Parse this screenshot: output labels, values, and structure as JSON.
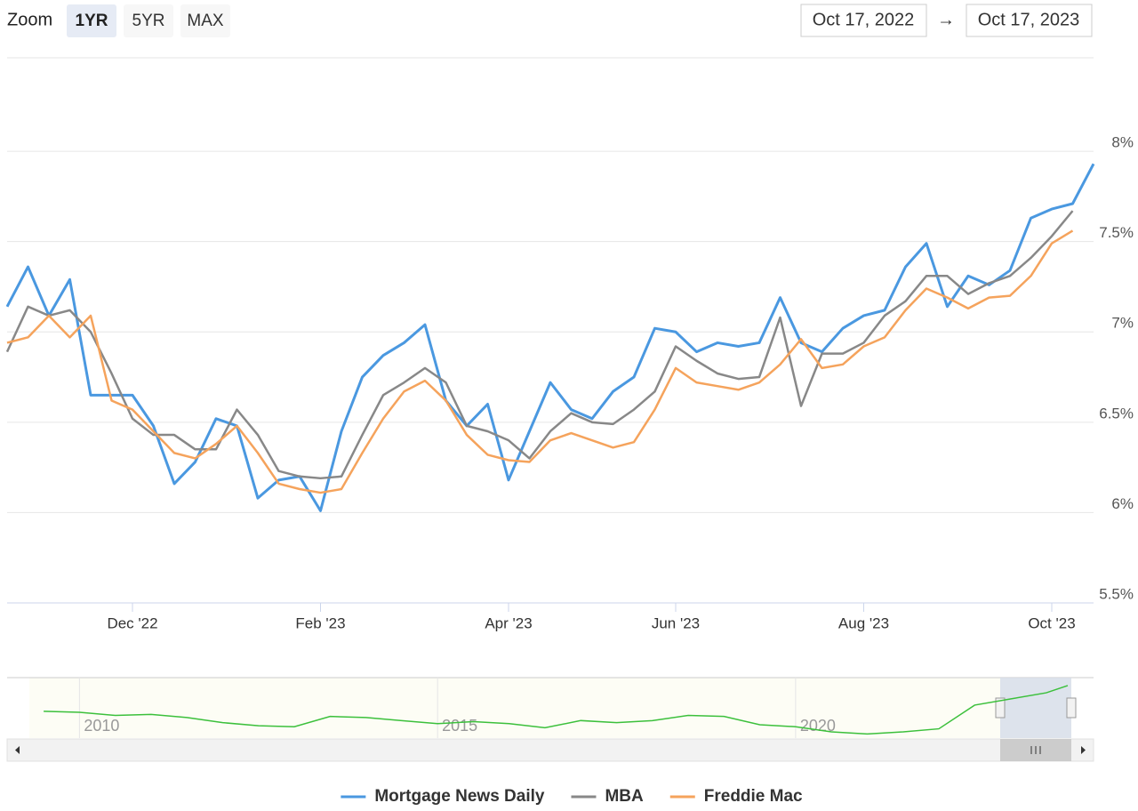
{
  "range_selector": {
    "label": "Zoom",
    "buttons": [
      "1YR",
      "5YR",
      "MAX"
    ],
    "from": "Oct 17, 2022",
    "arrow": "→",
    "to": "Oct 17, 2023"
  },
  "chart_data": [
    {
      "type": "line",
      "categories": [
        null,
        null,
        null,
        null,
        null,
        null,
        "Dec '22",
        null,
        null,
        null,
        null,
        null,
        null,
        null,
        null,
        "Feb '23",
        null,
        null,
        null,
        null,
        null,
        null,
        null,
        null,
        "Apr '23",
        null,
        null,
        null,
        null,
        null,
        null,
        null,
        "Jun '23",
        null,
        null,
        null,
        null,
        null,
        null,
        null,
        null,
        "Aug '23",
        null,
        null,
        null,
        null,
        null,
        null,
        null,
        null,
        "Oct '23",
        null,
        null
      ],
      "ylim": [
        5.5,
        8.5
      ],
      "yticks": [
        {
          "value": 5.5,
          "label": "5.5%"
        },
        {
          "value": 6,
          "label": "6%"
        },
        {
          "value": 6.5,
          "label": "6.5%"
        },
        {
          "value": 7,
          "label": "7%"
        },
        {
          "value": 7.5,
          "label": "7.5%"
        },
        {
          "value": 8,
          "label": "8%"
        }
      ],
      "grid": true,
      "legend": "bottom",
      "series": [
        {
          "name": "Mortgage News Daily",
          "color": "#4a98e0",
          "values": [
            7.14,
            7.36,
            7.09,
            7.29,
            6.65,
            6.65,
            6.65,
            6.48,
            6.16,
            6.28,
            6.52,
            6.48,
            6.08,
            6.18,
            6.2,
            6.01,
            6.45,
            6.75,
            6.87,
            6.94,
            7.04,
            6.62,
            6.48,
            6.6,
            6.18,
            6.45,
            6.72,
            6.57,
            6.52,
            6.67,
            6.75,
            7.02,
            7.0,
            6.89,
            6.94,
            6.92,
            6.94,
            7.19,
            6.94,
            6.89,
            7.02,
            7.09,
            7.12,
            7.36,
            7.49,
            7.14,
            7.31,
            7.26,
            7.34,
            7.63,
            7.68,
            7.71,
            7.93
          ]
        },
        {
          "name": "MBA",
          "color": "#888888",
          "values": [
            6.89,
            7.14,
            7.09,
            7.12,
            7.0,
            6.77,
            6.52,
            6.43,
            6.43,
            6.35,
            6.35,
            6.57,
            6.43,
            6.23,
            6.2,
            6.19,
            6.2,
            6.43,
            6.65,
            6.72,
            6.8,
            6.72,
            6.48,
            6.45,
            6.4,
            6.3,
            6.45,
            6.55,
            6.5,
            6.49,
            6.57,
            6.67,
            6.92,
            6.84,
            6.77,
            6.74,
            6.75,
            7.08,
            6.59,
            6.88,
            6.88,
            6.94,
            7.09,
            7.17,
            7.31,
            7.31,
            7.21,
            7.27,
            7.31,
            7.41,
            7.53,
            7.67,
            null
          ]
        },
        {
          "name": "Freddie Mac",
          "color": "#f5a35c",
          "values": [
            6.94,
            6.97,
            7.09,
            6.97,
            7.09,
            6.62,
            6.57,
            6.45,
            6.33,
            6.3,
            6.38,
            6.48,
            6.33,
            6.16,
            6.13,
            6.11,
            6.13,
            6.33,
            6.52,
            6.67,
            6.73,
            6.62,
            6.43,
            6.32,
            6.29,
            6.28,
            6.4,
            6.44,
            6.4,
            6.36,
            6.39,
            6.57,
            6.8,
            6.72,
            6.7,
            6.68,
            6.72,
            6.82,
            6.96,
            6.8,
            6.82,
            6.92,
            6.97,
            7.12,
            7.24,
            7.19,
            7.13,
            7.19,
            7.2,
            7.31,
            7.49,
            7.56,
            null
          ]
        }
      ]
    },
    {
      "type": "line",
      "x": [
        2009.5,
        2010,
        2010.5,
        2011,
        2011.5,
        2012,
        2012.5,
        2013,
        2013.5,
        2014,
        2014.5,
        2015,
        2015.5,
        2016,
        2016.5,
        2017,
        2017.5,
        2018,
        2018.5,
        2019,
        2019.5,
        2020,
        2020.5,
        2021,
        2021.5,
        2022,
        2022.5,
        2023,
        2023.5,
        2023.8
      ],
      "values": [
        5.1,
        5.0,
        4.7,
        4.8,
        4.5,
        4.0,
        3.7,
        3.6,
        4.6,
        4.5,
        4.2,
        3.9,
        4.1,
        3.9,
        3.5,
        4.2,
        4.0,
        4.2,
        4.7,
        4.6,
        3.8,
        3.6,
        3.1,
        2.9,
        3.1,
        3.4,
        5.7,
        6.3,
        6.9,
        7.6
      ],
      "color": "#3cc03c",
      "xlim": [
        2009.3,
        2023.85
      ],
      "xticks": [
        2010,
        2015,
        2020
      ],
      "ylim": [
        2.5,
        8.2
      ]
    }
  ]
}
